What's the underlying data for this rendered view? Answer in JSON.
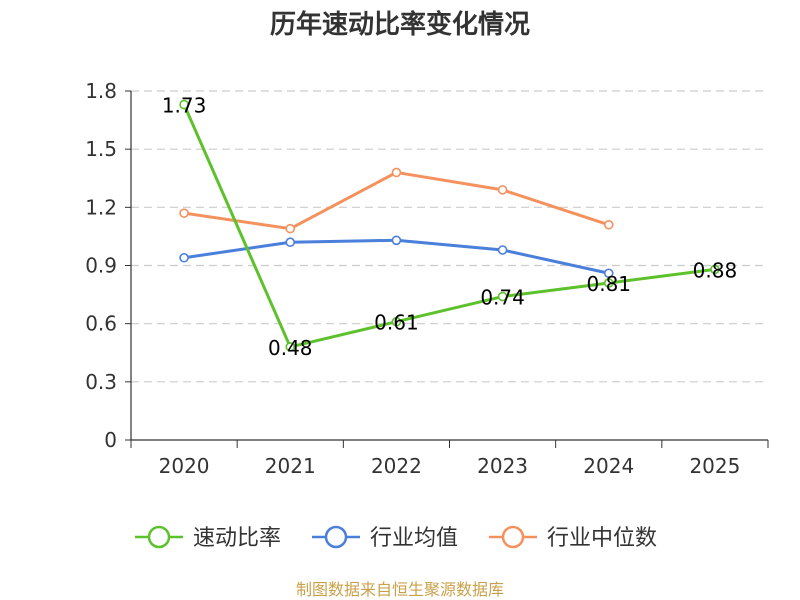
{
  "chart_data": {
    "type": "line",
    "title": "历年速动比率变化情况",
    "categories": [
      "2020",
      "2021",
      "2022",
      "2023",
      "2024",
      "2025"
    ],
    "ylim": [
      0,
      1.8
    ],
    "yticks": [
      "0",
      "0.3",
      "0.6",
      "0.9",
      "1.2",
      "1.5",
      "1.8"
    ],
    "series": [
      {
        "name": "速动比率",
        "color": "#5cc12b",
        "values": [
          1.73,
          0.48,
          0.61,
          0.74,
          0.81,
          0.88
        ],
        "labels": [
          "1.73",
          "0.48",
          "0.61",
          "0.74",
          "0.81",
          "0.88"
        ]
      },
      {
        "name": "行业均值",
        "color": "#4a7fdc",
        "values": [
          0.94,
          1.02,
          1.03,
          0.98,
          0.86,
          null
        ]
      },
      {
        "name": "行业中位数",
        "color": "#f5915d",
        "values": [
          1.17,
          1.09,
          1.38,
          1.29,
          1.11,
          null
        ]
      }
    ],
    "grid": true,
    "legend": "bottom"
  },
  "source_text": "制图数据来自恒生聚源数据库"
}
